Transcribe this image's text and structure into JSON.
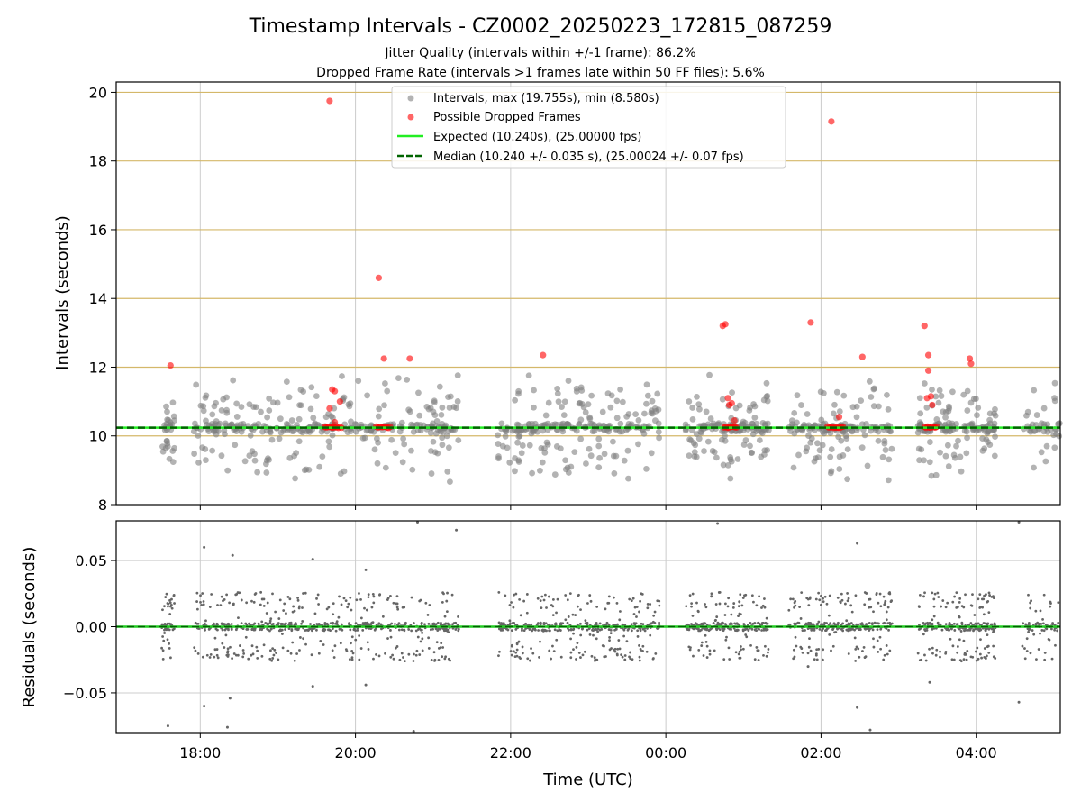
{
  "figure": {
    "title": "Timestamp Intervals - CZ0002_20250223_172815_087259",
    "subtitle_1": "Jitter Quality (intervals within +/-1 frame): 86.2%",
    "subtitle_2": "Dropped Frame Rate (intervals >1 frames late within 50 FF files): 5.6%"
  },
  "colors": {
    "intervals": "#808080",
    "dropped": "#ff0000",
    "expected": "#22ee22",
    "median": "#006400",
    "hgrid_top": "#d4b86a",
    "grid": "#cccccc",
    "residual_line": "#22cc22"
  },
  "chart_data": [
    {
      "type": "scatter",
      "panel": "intervals",
      "ylabel": "Intervals (seconds)",
      "ylim": [
        8,
        20.3
      ],
      "yticks": [
        "8",
        "10",
        "12",
        "14",
        "16",
        "18",
        "20"
      ],
      "x_time_range": [
        "2025-02-23T16:55",
        "2025-02-24T05:05"
      ],
      "grid": true,
      "legend_position": "top-center",
      "legend": [
        "Intervals, max (19.755s), min (8.580s)",
        "Possible Dropped Frames",
        "Expected (10.240s), (25.00000 fps)",
        "Median (10.240 +/- 0.035 s), (25.00024 +/- 0.07 fps)"
      ],
      "expected_value": 10.24,
      "median_value": 10.24,
      "interval_clusters": [
        {
          "start": "17:30",
          "end": "17:40",
          "count": 30,
          "spread": 0.45
        },
        {
          "start": "17:55",
          "end": "21:20",
          "count": 330,
          "spread": 0.75
        },
        {
          "start": "21:50",
          "end": "23:55",
          "count": 220,
          "spread": 0.75
        },
        {
          "start": "00:15",
          "end": "01:20",
          "count": 140,
          "spread": 0.75
        },
        {
          "start": "01:35",
          "end": "02:55",
          "count": 150,
          "spread": 0.75
        },
        {
          "start": "03:15",
          "end": "04:15",
          "count": 140,
          "spread": 0.75
        },
        {
          "start": "04:35",
          "end": "05:05",
          "count": 40,
          "spread": 0.6
        }
      ],
      "dropped_frames": [
        {
          "t": "17:37",
          "v": 12.05
        },
        {
          "t": "19:40",
          "v": 19.75
        },
        {
          "t": "19:40",
          "v": 10.8
        },
        {
          "t": "19:42",
          "v": 11.35
        },
        {
          "t": "19:44",
          "v": 11.3
        },
        {
          "t": "19:44",
          "v": 10.4
        },
        {
          "t": "19:48",
          "v": 11.0
        },
        {
          "t": "20:18",
          "v": 14.6
        },
        {
          "t": "20:22",
          "v": 12.25
        },
        {
          "t": "20:42",
          "v": 12.25
        },
        {
          "t": "22:25",
          "v": 12.35
        },
        {
          "t": "00:44",
          "v": 13.2
        },
        {
          "t": "00:46",
          "v": 13.25
        },
        {
          "t": "00:48",
          "v": 11.1
        },
        {
          "t": "00:49",
          "v": 10.9
        },
        {
          "t": "00:53",
          "v": 10.45
        },
        {
          "t": "00:51",
          "v": 10.95
        },
        {
          "t": "01:52",
          "v": 13.3
        },
        {
          "t": "02:08",
          "v": 19.15
        },
        {
          "t": "02:14",
          "v": 10.55
        },
        {
          "t": "02:32",
          "v": 12.3
        },
        {
          "t": "03:20",
          "v": 13.2
        },
        {
          "t": "03:23",
          "v": 12.35
        },
        {
          "t": "03:23",
          "v": 11.9
        },
        {
          "t": "03:22",
          "v": 11.1
        },
        {
          "t": "03:25",
          "v": 11.15
        },
        {
          "t": "03:26",
          "v": 10.9
        },
        {
          "t": "03:55",
          "v": 12.25
        },
        {
          "t": "03:56",
          "v": 12.1
        }
      ],
      "dropped_bands": [
        {
          "start": "19:36",
          "end": "19:50",
          "v": 10.25
        },
        {
          "start": "20:16",
          "end": "20:28",
          "v": 10.25
        },
        {
          "start": "00:45",
          "end": "00:55",
          "v": 10.25
        },
        {
          "start": "02:05",
          "end": "02:18",
          "v": 10.25
        },
        {
          "start": "03:20",
          "end": "03:30",
          "v": 10.25
        }
      ]
    },
    {
      "type": "scatter",
      "panel": "residuals",
      "ylabel": "Residuals (seconds)",
      "xlabel": "Time (UTC)",
      "ylim": [
        -0.08,
        0.08
      ],
      "yticks": [
        "−0.05",
        "0.00",
        "0.05"
      ],
      "xticks": [
        "18:00",
        "20:00",
        "22:00",
        "00:00",
        "02:00",
        "04:00"
      ],
      "grid": true,
      "zero_line": 0.0,
      "outliers": [
        {
          "t": "17:35",
          "v": -0.075
        },
        {
          "t": "18:03",
          "v": 0.06
        },
        {
          "t": "18:03",
          "v": -0.06
        },
        {
          "t": "18:25",
          "v": 0.054
        },
        {
          "t": "18:23",
          "v": -0.054
        },
        {
          "t": "18:21",
          "v": -0.076
        },
        {
          "t": "19:27",
          "v": 0.051
        },
        {
          "t": "19:27",
          "v": -0.045
        },
        {
          "t": "20:08",
          "v": 0.043
        },
        {
          "t": "20:08",
          "v": -0.044
        },
        {
          "t": "20:45",
          "v": -0.079
        },
        {
          "t": "20:48",
          "v": 0.079
        },
        {
          "t": "21:18",
          "v": 0.073
        },
        {
          "t": "00:40",
          "v": 0.078
        },
        {
          "t": "01:50",
          "v": -0.03
        },
        {
          "t": "02:28",
          "v": 0.063
        },
        {
          "t": "02:28",
          "v": -0.061
        },
        {
          "t": "02:38",
          "v": -0.078
        },
        {
          "t": "03:24",
          "v": -0.042
        },
        {
          "t": "04:33",
          "v": 0.079
        },
        {
          "t": "04:33",
          "v": -0.057
        }
      ]
    }
  ]
}
